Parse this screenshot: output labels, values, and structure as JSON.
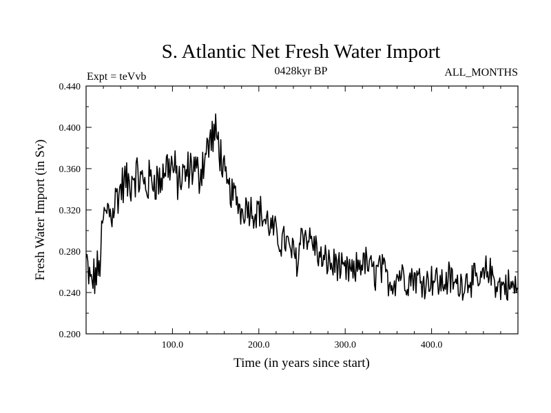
{
  "chart_data": {
    "type": "line",
    "title": "S. Atlantic Net Fresh Water Import",
    "subtitle_left": "Expt = teVvb",
    "subtitle_center": "0428kyr BP",
    "subtitle_right": "ALL_MONTHS",
    "xlabel": "Time (in years since start)",
    "ylabel": "Fresh Water Import (in Sv)",
    "xlim": [
      0,
      500
    ],
    "ylim": [
      0.2,
      0.44
    ],
    "x_ticks": [
      100,
      200,
      300,
      400
    ],
    "x_tick_labels": [
      "100.0",
      "200.0",
      "300.0",
      "400.0"
    ],
    "y_ticks": [
      0.2,
      0.24,
      0.28,
      0.32,
      0.36,
      0.4,
      0.44
    ],
    "y_tick_labels": [
      "0.200",
      "0.240",
      "0.280",
      "0.320",
      "0.360",
      "0.400",
      "0.440"
    ],
    "grid": false,
    "series": [
      {
        "name": "Fresh Water Import",
        "color": "#000000",
        "x": [
          0,
          5,
          10,
          15,
          20,
          25,
          30,
          35,
          40,
          45,
          50,
          55,
          60,
          65,
          70,
          75,
          80,
          85,
          90,
          95,
          100,
          105,
          110,
          115,
          120,
          125,
          130,
          135,
          140,
          145,
          150,
          155,
          160,
          165,
          170,
          175,
          180,
          185,
          190,
          195,
          200,
          205,
          210,
          215,
          220,
          225,
          230,
          235,
          240,
          245,
          250,
          255,
          260,
          265,
          270,
          275,
          280,
          285,
          290,
          295,
          300,
          305,
          310,
          315,
          320,
          325,
          330,
          335,
          340,
          345,
          350,
          355,
          360,
          365,
          370,
          375,
          380,
          385,
          390,
          395,
          400,
          405,
          410,
          415,
          420,
          425,
          430,
          435,
          440,
          445,
          450,
          455,
          460,
          465,
          470,
          475,
          480,
          485,
          490,
          495,
          500
        ],
        "values": [
          0.27,
          0.248,
          0.255,
          0.262,
          0.31,
          0.32,
          0.318,
          0.332,
          0.34,
          0.348,
          0.343,
          0.356,
          0.352,
          0.347,
          0.344,
          0.349,
          0.351,
          0.346,
          0.358,
          0.365,
          0.362,
          0.35,
          0.348,
          0.352,
          0.36,
          0.362,
          0.352,
          0.366,
          0.378,
          0.39,
          0.392,
          0.38,
          0.35,
          0.34,
          0.335,
          0.33,
          0.318,
          0.325,
          0.322,
          0.318,
          0.322,
          0.312,
          0.308,
          0.302,
          0.296,
          0.289,
          0.292,
          0.282,
          0.278,
          0.27,
          0.303,
          0.292,
          0.292,
          0.285,
          0.274,
          0.268,
          0.272,
          0.265,
          0.27,
          0.26,
          0.258,
          0.262,
          0.255,
          0.268,
          0.27,
          0.268,
          0.262,
          0.258,
          0.265,
          0.258,
          0.252,
          0.25,
          0.256,
          0.26,
          0.252,
          0.254,
          0.256,
          0.252,
          0.254,
          0.25,
          0.255,
          0.252,
          0.248,
          0.25,
          0.254,
          0.25,
          0.246,
          0.25,
          0.252,
          0.255,
          0.25,
          0.248,
          0.254,
          0.262,
          0.256,
          0.25,
          0.245,
          0.248,
          0.246,
          0.244,
          0.245
        ]
      }
    ]
  }
}
